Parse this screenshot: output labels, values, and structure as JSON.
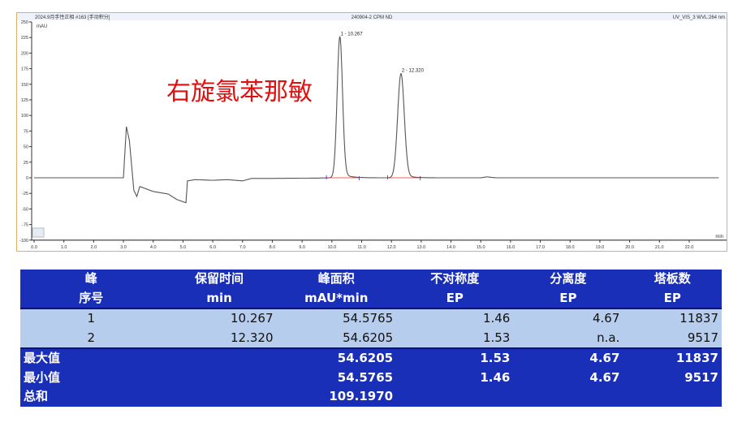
{
  "chart_data": {
    "type": "line",
    "header_left": "2024.9月手性正相 #163 [手动积分]",
    "header_center": "240904-2 CPM ND",
    "header_right": "UV_VIS_3 WVL:264 nm",
    "ylabel": "mAU",
    "xlabel": "min",
    "xlim": [
      0,
      23
    ],
    "ylim": [
      -100,
      250
    ],
    "xticks": [
      "0.0",
      "1.0",
      "2.0",
      "3.0",
      "4.0",
      "5.0",
      "6.0",
      "7.0",
      "8.0",
      "9.0",
      "10.0",
      "11.0",
      "12.0",
      "13.0",
      "14.0",
      "15.0",
      "16.0",
      "17.0",
      "18.0",
      "19.0",
      "20.0",
      "21.0",
      "22.0"
    ],
    "yticks": [
      "250",
      "225",
      "200",
      "175",
      "150",
      "125",
      "100",
      "75",
      "50",
      "25",
      "0",
      "-25",
      "-50",
      "-75",
      "-100"
    ],
    "peaks": [
      {
        "label": "1 - 10.267",
        "rt": 10.267,
        "height": 226,
        "width": 0.09
      },
      {
        "label": "2 - 12.320",
        "rt": 12.32,
        "height": 167,
        "width": 0.11
      }
    ],
    "baseline_trace": [
      [
        0,
        0
      ],
      [
        3.0,
        0
      ],
      [
        3.1,
        82
      ],
      [
        3.2,
        60
      ],
      [
        3.35,
        -20
      ],
      [
        3.45,
        -30
      ],
      [
        3.55,
        -14
      ],
      [
        4.0,
        -22
      ],
      [
        4.5,
        -26
      ],
      [
        4.8,
        -35
      ],
      [
        5.1,
        -40
      ],
      [
        5.15,
        -5
      ],
      [
        5.4,
        -3
      ],
      [
        6.0,
        -4
      ],
      [
        6.5,
        -3
      ],
      [
        7.0,
        -5
      ],
      [
        7.3,
        -1
      ],
      [
        8.0,
        -1
      ],
      [
        9.5,
        -0.5
      ],
      [
        10.0,
        0
      ],
      [
        15.0,
        0
      ],
      [
        15.2,
        1.5
      ],
      [
        15.5,
        0
      ],
      [
        23,
        0
      ]
    ],
    "overlay_title": "右旋氯苯那敏",
    "color": "#555555"
  },
  "table": {
    "headers": [
      [
        "峰",
        "序号"
      ],
      [
        "保留时间",
        "min"
      ],
      [
        "峰面积",
        "mAU*min"
      ],
      [
        "不对称度",
        "EP"
      ],
      [
        "分离度",
        "EP"
      ],
      [
        "塔板数",
        "EP"
      ]
    ],
    "rows": [
      [
        "1",
        "10.267",
        "54.5765",
        "1.46",
        "4.67",
        "11837"
      ],
      [
        "2",
        "12.320",
        "54.6205",
        "1.53",
        "n.a.",
        "9517"
      ]
    ],
    "summary": [
      [
        "最大值",
        "",
        "54.6205",
        "1.53",
        "4.67",
        "11837"
      ],
      [
        "最小值",
        "",
        "54.5765",
        "1.46",
        "4.67",
        "9517"
      ],
      [
        "总和",
        "",
        "109.1970",
        "",
        "",
        ""
      ]
    ]
  }
}
